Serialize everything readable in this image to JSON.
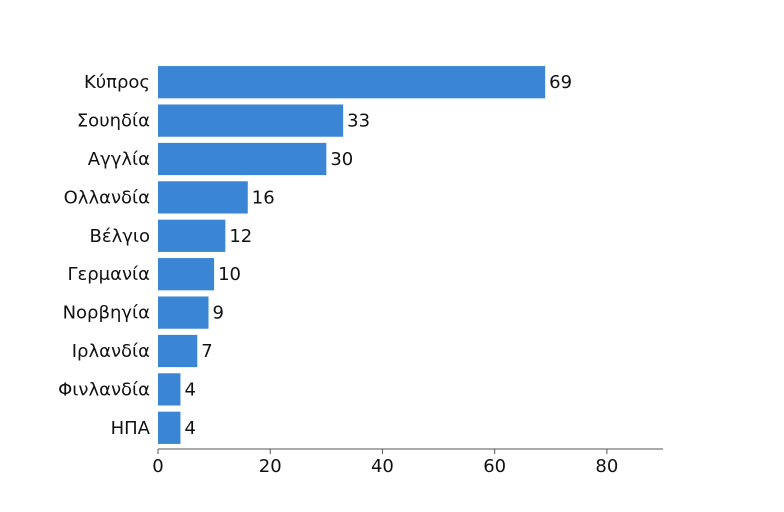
{
  "chart_data": {
    "type": "hbar",
    "categories": [
      "Κύπρος",
      "Σουηδία",
      "Αγγλία",
      "Ολλανδία",
      "Βέλγιο",
      "Γερμανία",
      "Νορβηγία",
      "Ιρλανδία",
      "Φινλανδία",
      "ΗΠΑ"
    ],
    "values": [
      69,
      33,
      30,
      16,
      12,
      10,
      9,
      7,
      4,
      4
    ],
    "color": "#3a86d4",
    "xlim": [
      0,
      90
    ],
    "xticks": [
      0,
      20,
      40,
      60,
      80
    ]
  }
}
